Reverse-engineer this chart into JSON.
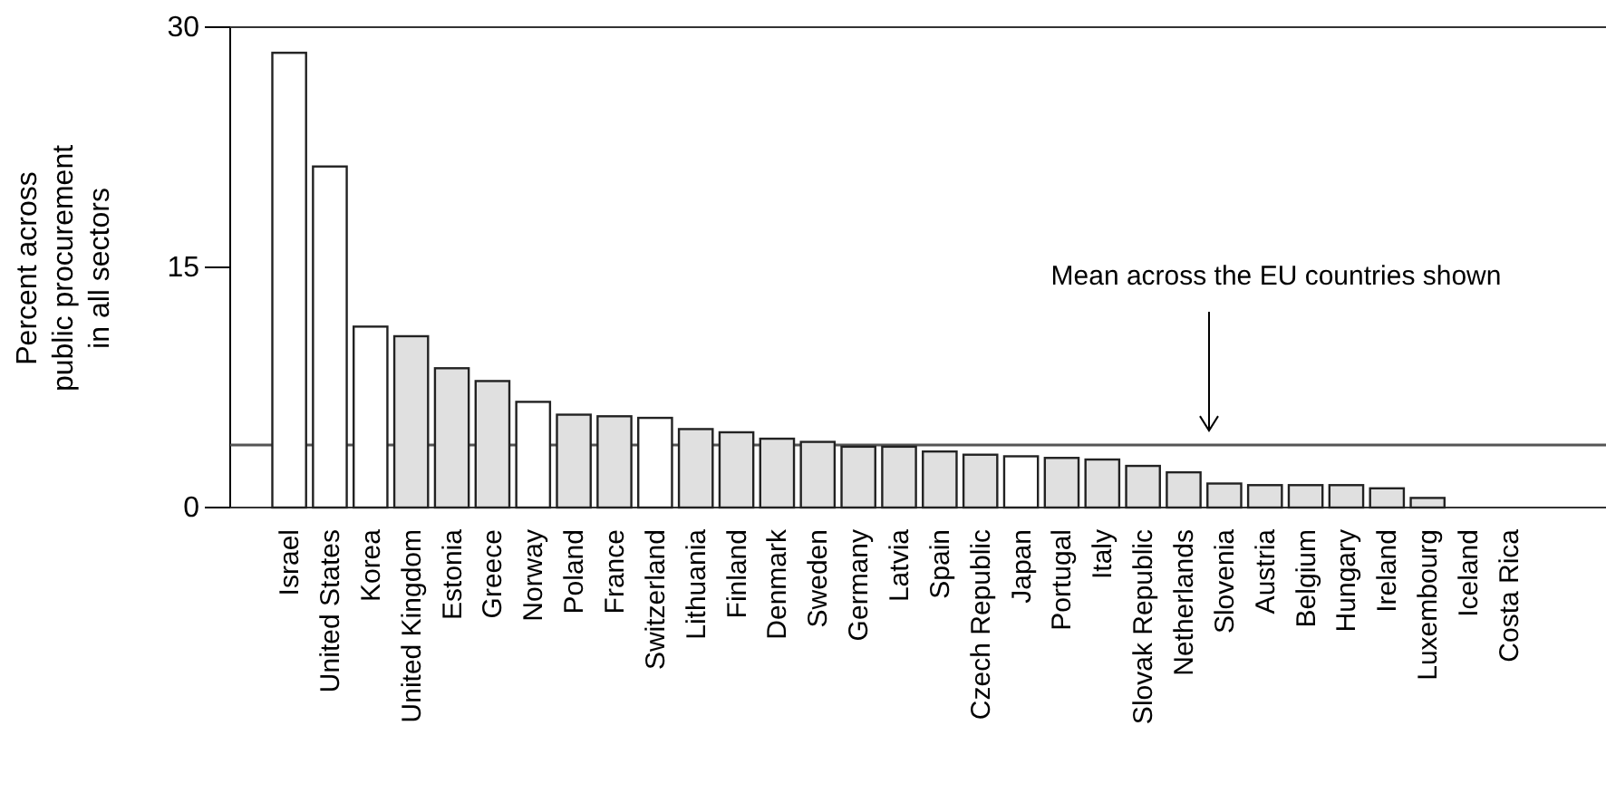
{
  "chart_data": {
    "type": "bar",
    "ylabel": "Percent across\npublic procurement\nin all sectors",
    "categories": [
      "Israel",
      "United States",
      "Korea",
      "United Kingdom",
      "Estonia",
      "Greece",
      "Norway",
      "Poland",
      "France",
      "Switzerland",
      "Lithuania",
      "Finland",
      "Denmark",
      "Sweden",
      "Germany",
      "Latvia",
      "Spain",
      "Czech Republic",
      "Japan",
      "Portugal",
      "Italy",
      "Slovak Republic",
      "Netherlands",
      "Slovenia",
      "Austria",
      "Belgium",
      "Hungary",
      "Ireland",
      "Luxembourg",
      "Iceland",
      "Costa Rica"
    ],
    "values": [
      28.4,
      21.3,
      11.3,
      10.7,
      8.7,
      7.9,
      6.6,
      5.8,
      5.7,
      5.6,
      4.9,
      4.7,
      4.3,
      4.1,
      3.8,
      3.8,
      3.5,
      3.3,
      3.2,
      3.1,
      3.0,
      2.6,
      2.2,
      1.5,
      1.4,
      1.4,
      1.4,
      1.2,
      0.6,
      0,
      0
    ],
    "colors": [
      "#ffffff",
      "#ffffff",
      "#ffffff",
      "#e0e0e0",
      "#e0e0e0",
      "#e0e0e0",
      "#ffffff",
      "#e0e0e0",
      "#e0e0e0",
      "#ffffff",
      "#e0e0e0",
      "#e0e0e0",
      "#e0e0e0",
      "#e0e0e0",
      "#e0e0e0",
      "#e0e0e0",
      "#e0e0e0",
      "#e0e0e0",
      "#ffffff",
      "#e0e0e0",
      "#e0e0e0",
      "#e0e0e0",
      "#e0e0e0",
      "#e0e0e0",
      "#e0e0e0",
      "#e0e0e0",
      "#e0e0e0",
      "#e0e0e0",
      "#e0e0e0",
      "#ffffff",
      "#ffffff"
    ],
    "ylim": [
      0,
      30
    ],
    "yticks": [
      0,
      15,
      30
    ],
    "ref_lines": [
      {
        "axis": "y",
        "value": 3.9,
        "label": "Mean across the EU countries shown",
        "color": "#555555"
      }
    ]
  }
}
